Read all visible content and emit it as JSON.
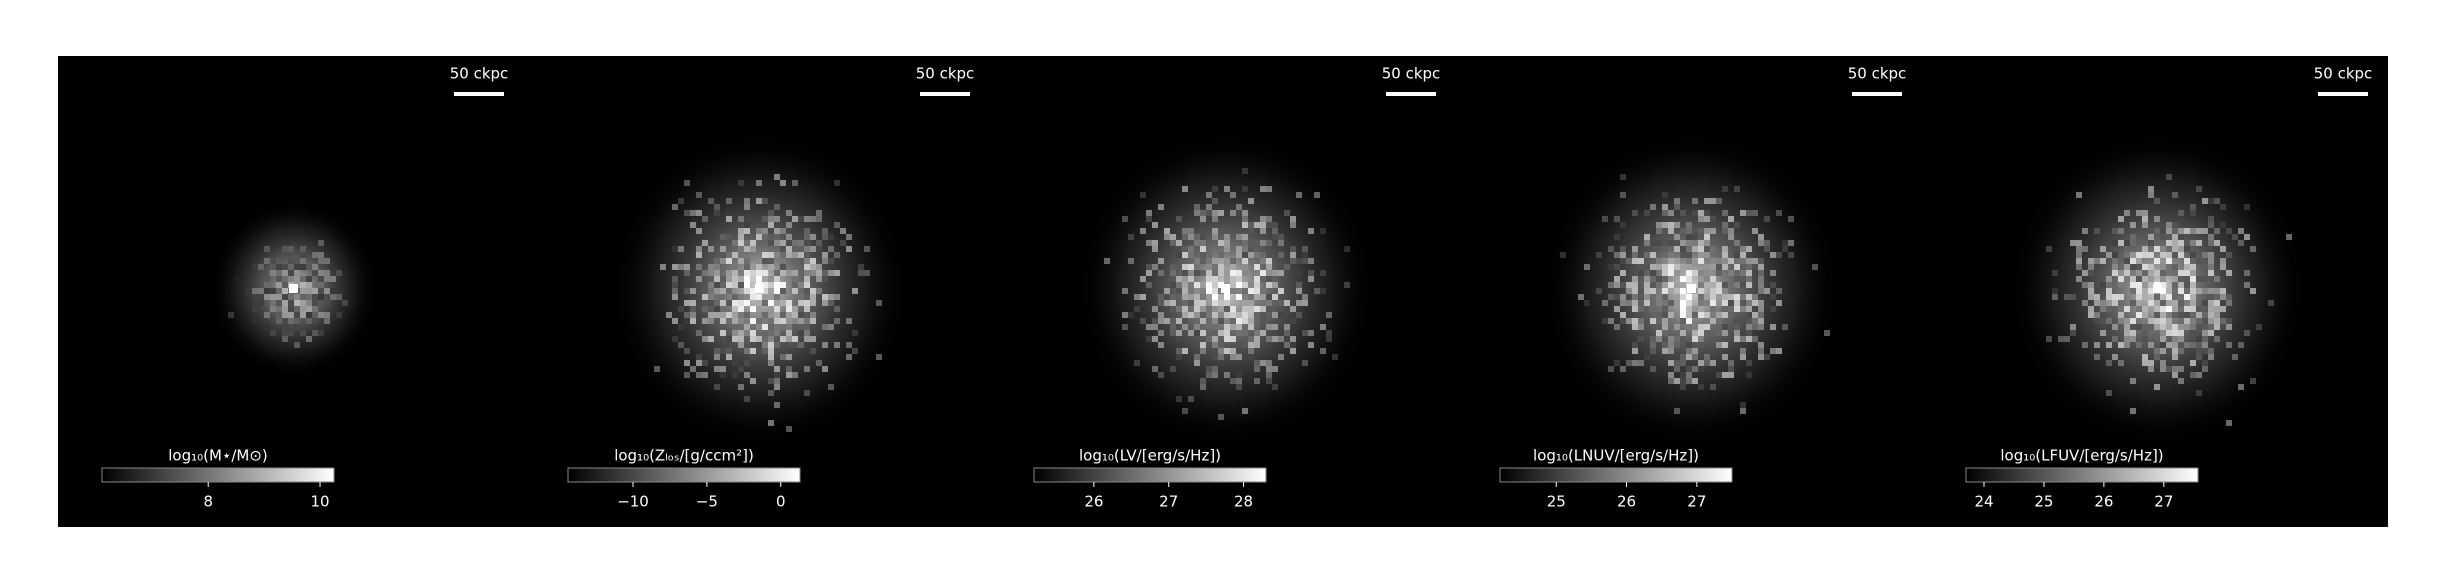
{
  "panels": [
    {
      "scale_label": "50 ckpc",
      "colorbar": {
        "label": "log₁₀(M⋆/M⊙)",
        "lim": [
          6.1,
          10.25
        ],
        "ticks": [
          8,
          10
        ]
      }
    },
    {
      "scale_label": "50 ckpc",
      "colorbar": {
        "label": "log₁₀(Zₗₒₛ/[g/ccm²])",
        "lim": [
          -14.4,
          1.3
        ],
        "ticks": [
          {
            "value": -10,
            "label": "−10"
          },
          {
            "value": -5,
            "label": "−5"
          },
          0
        ]
      }
    },
    {
      "scale_label": "50 ckpc",
      "colorbar": {
        "label": "log₁₀(LV/[erg/s/Hz])",
        "lim": [
          25.2,
          28.3
        ],
        "ticks": [
          26,
          27,
          28
        ]
      }
    },
    {
      "scale_label": "50 ckpc",
      "colorbar": {
        "label": "log₁₀(LNUV/[erg/s/Hz])",
        "lim": [
          24.2,
          27.5
        ],
        "ticks": [
          25,
          26,
          27
        ]
      }
    },
    {
      "scale_label": "50 ckpc",
      "colorbar": {
        "label": "log₁₀(LFUV/[erg/s/Hz])",
        "lim": [
          23.7,
          27.57
        ],
        "ticks": [
          24,
          25,
          26,
          27
        ]
      }
    }
  ]
}
